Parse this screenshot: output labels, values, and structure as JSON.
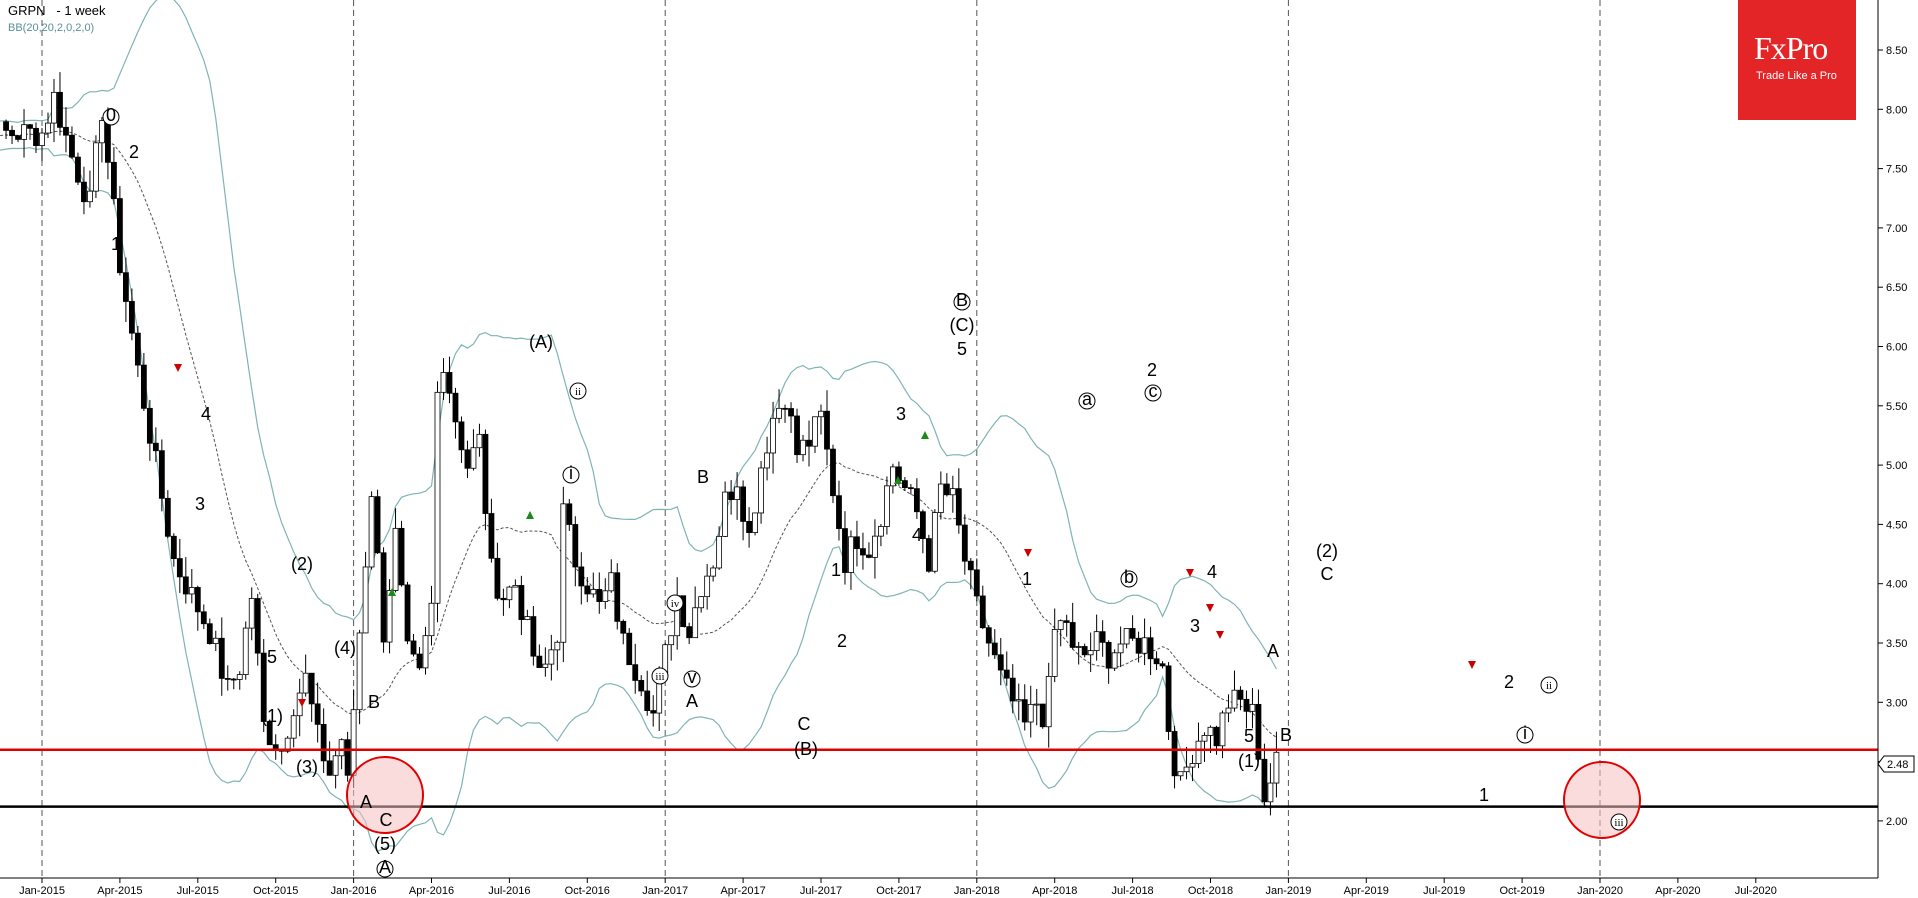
{
  "header": {
    "symbol": "GRPN",
    "timeframe": "- 1 week",
    "indicator": "BB(20,20,2,0,2,0)"
  },
  "logo": {
    "brand": "FxPro",
    "tagline": "Trade Like a Pro"
  },
  "colors": {
    "candle_up": "#ffffff",
    "candle_down": "#000000",
    "band": "#7fb4b4",
    "mid": "#555555",
    "resistance": "#e00000",
    "support": "#000000",
    "highlight": "#f5c0c0",
    "signal_up": "#1a8a1a",
    "signal_down": "#cc0000"
  },
  "chart_data": {
    "type": "candlestick",
    "title": "GRPN - 1 week",
    "ylim": [
      1.7,
      8.9
    ],
    "y_ticks": [
      "8.50",
      "8.00",
      "7.50",
      "7.00",
      "6.50",
      "6.00",
      "5.50",
      "5.00",
      "4.50",
      "4.00",
      "3.50",
      "3.00",
      "2.50",
      "2.00"
    ],
    "x_ticks": [
      "Jan-2015",
      "Apr-2015",
      "Jul-2015",
      "Oct-2015",
      "Jan-2016",
      "Apr-2016",
      "Jul-2016",
      "Oct-2016",
      "Jan-2017",
      "Apr-2017",
      "Jul-2017",
      "Oct-2017",
      "Jan-2018",
      "Apr-2018",
      "Jul-2018",
      "Oct-2018",
      "Jan-2019",
      "Apr-2019",
      "Jul-2019",
      "Oct-2019",
      "Jan-2020",
      "Apr-2020",
      "Jul-2020"
    ],
    "current_price": "2.48",
    "resistance_level": 2.6,
    "support_level": 2.12,
    "price_path": [
      [
        0,
        7.8
      ],
      [
        2,
        8.1
      ],
      [
        5,
        7.6
      ],
      [
        8,
        7.2
      ],
      [
        10,
        8.0
      ],
      [
        13,
        6.7
      ],
      [
        16,
        5.8
      ],
      [
        19,
        5.0
      ],
      [
        22,
        4.2
      ],
      [
        25,
        3.9
      ],
      [
        28,
        3.6
      ],
      [
        31,
        3.1
      ],
      [
        33,
        3.3
      ],
      [
        35,
        3.9
      ],
      [
        37,
        2.8
      ],
      [
        40,
        2.6
      ],
      [
        42,
        3.0
      ],
      [
        44,
        3.2
      ],
      [
        46,
        2.7
      ],
      [
        48,
        2.4
      ],
      [
        50,
        2.7
      ],
      [
        51,
        2.3
      ],
      [
        53,
        3.6
      ],
      [
        55,
        4.8
      ],
      [
        57,
        3.6
      ],
      [
        59,
        4.4
      ],
      [
        61,
        3.4
      ],
      [
        63,
        3.2
      ],
      [
        65,
        3.8
      ],
      [
        66,
        5.6
      ],
      [
        67,
        5.9
      ],
      [
        69,
        5.4
      ],
      [
        71,
        5.0
      ],
      [
        73,
        5.2
      ],
      [
        75,
        4.1
      ],
      [
        77,
        3.9
      ],
      [
        79,
        4.0
      ],
      [
        81,
        3.6
      ],
      [
        83,
        3.2
      ],
      [
        84,
        3.3
      ],
      [
        86,
        3.6
      ],
      [
        87,
        4.6
      ],
      [
        89,
        4.2
      ],
      [
        91,
        4.0
      ],
      [
        93,
        3.8
      ],
      [
        95,
        4.0
      ],
      [
        97,
        3.5
      ],
      [
        100,
        3.2
      ],
      [
        102,
        2.9
      ],
      [
        104,
        3.4
      ],
      [
        106,
        3.9
      ],
      [
        108,
        3.6
      ],
      [
        110,
        4.0
      ],
      [
        112,
        4.2
      ],
      [
        114,
        4.7
      ],
      [
        116,
        4.9
      ],
      [
        118,
        4.4
      ],
      [
        120,
        5.0
      ],
      [
        122,
        5.4
      ],
      [
        124,
        5.6
      ],
      [
        126,
        5.1
      ],
      [
        128,
        5.2
      ],
      [
        130,
        5.4
      ],
      [
        132,
        4.8
      ],
      [
        134,
        4.2
      ],
      [
        136,
        4.4
      ],
      [
        138,
        4.3
      ],
      [
        140,
        4.6
      ],
      [
        142,
        5.0
      ],
      [
        144,
        4.8
      ],
      [
        146,
        4.6
      ],
      [
        148,
        4.2
      ],
      [
        150,
        4.8
      ],
      [
        152,
        4.7
      ],
      [
        154,
        4.2
      ],
      [
        156,
        3.8
      ],
      [
        158,
        3.5
      ],
      [
        160,
        3.2
      ],
      [
        162,
        3.0
      ],
      [
        164,
        2.8
      ],
      [
        166,
        3.0
      ],
      [
        167,
        2.9
      ],
      [
        168,
        3.1
      ],
      [
        169,
        3.6
      ],
      [
        171,
        3.7
      ],
      [
        172,
        3.4
      ],
      [
        174,
        3.4
      ],
      [
        176,
        3.5
      ],
      [
        178,
        3.4
      ],
      [
        180,
        3.5
      ],
      [
        182,
        3.5
      ],
      [
        184,
        3.5
      ],
      [
        186,
        3.4
      ],
      [
        187,
        3.3
      ],
      [
        188,
        2.8
      ],
      [
        189,
        2.5
      ],
      [
        190,
        2.3
      ],
      [
        192,
        2.6
      ],
      [
        194,
        2.8
      ],
      [
        196,
        2.7
      ],
      [
        198,
        3.0
      ],
      [
        200,
        3.0
      ],
      [
        202,
        2.9
      ],
      [
        203,
        2.6
      ],
      [
        204,
        2.2
      ],
      [
        206,
        2.48
      ]
    ],
    "wave_labels": [
      "0",
      "2",
      "1",
      "4",
      "3",
      "(2)",
      "5",
      "(1)",
      "(3)",
      "(4)",
      "B",
      "A",
      "C",
      "(5)",
      "A",
      "(A)",
      "ii",
      "i",
      "iv",
      "iii",
      "v",
      "A",
      "B",
      "1",
      "2",
      "C",
      "(B)",
      "3",
      "4",
      "B",
      "(C)",
      "5",
      "a",
      "c",
      "2",
      "1",
      "b",
      "4",
      "3",
      "A",
      "5",
      "B",
      "(1)",
      "(2)",
      "C",
      "2",
      "ii",
      "i",
      "1",
      "iii"
    ]
  }
}
